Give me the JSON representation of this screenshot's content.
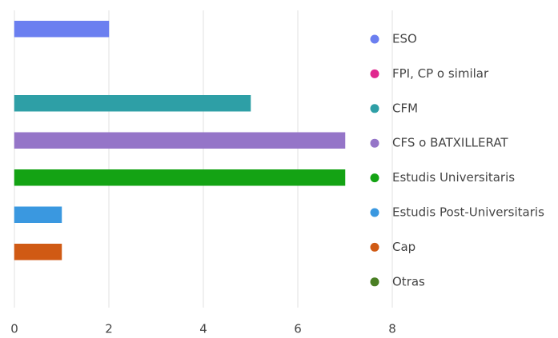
{
  "chart_data": {
    "type": "bar",
    "orientation": "horizontal",
    "categories": [
      "ESO",
      "FPI, CP o similar",
      "CFM",
      "CFS o BATXILLERAT",
      "Estudis Universitaris",
      "Estudis Post-Universitaris",
      "Cap",
      "Otras"
    ],
    "values": [
      2,
      0,
      5,
      7,
      7,
      1,
      1,
      0
    ],
    "colors": [
      "#6b7ff0",
      "#e0288f",
      "#2e9fa6",
      "#9575c8",
      "#14a314",
      "#3a98e0",
      "#d05a14",
      "#4a7f24"
    ],
    "xlim": [
      0,
      8
    ],
    "xticks": [
      0,
      2,
      4,
      6,
      8
    ],
    "grid": true,
    "legend": "right"
  }
}
